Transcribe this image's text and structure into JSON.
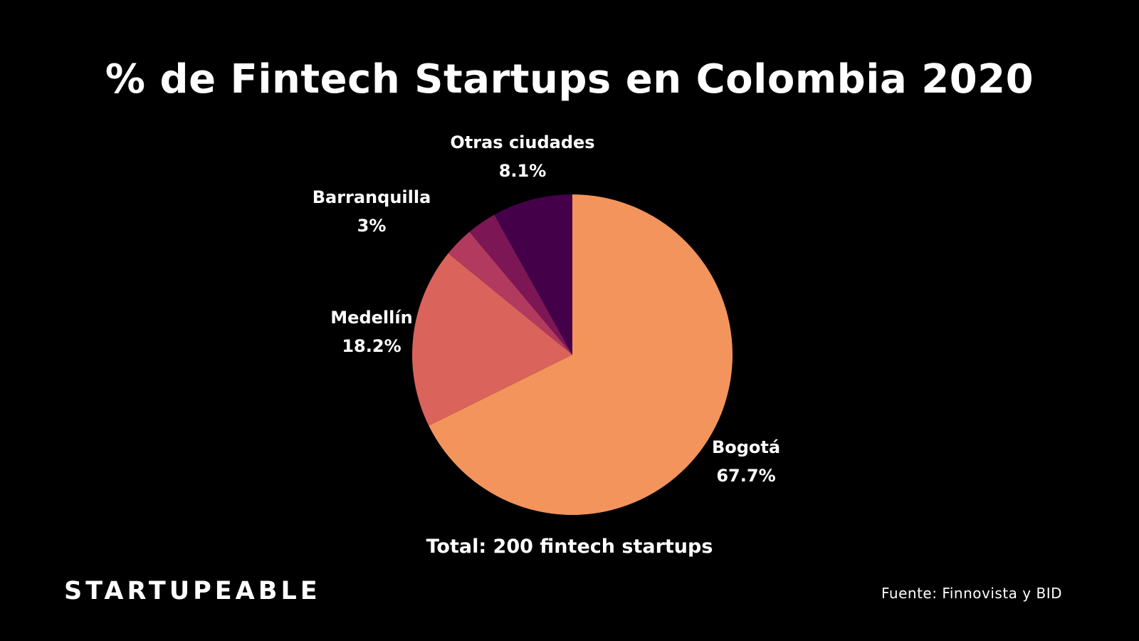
{
  "chart_data": {
    "type": "pie",
    "title": "% de Fintech Startups en Colombia 2020",
    "slices": [
      {
        "label": "Bogotá",
        "value": 67.7,
        "display": "67.7%",
        "color": "#F2945C"
      },
      {
        "label": "Medellín",
        "value": 18.2,
        "display": "18.2%",
        "color": "#DA635B"
      },
      {
        "label": "",
        "value": 3.0,
        "display": "",
        "color": "#B23A5E"
      },
      {
        "label": "Barranquilla",
        "value": 3.0,
        "display": "3%",
        "color": "#7C1655"
      },
      {
        "label": "Otras ciudades",
        "value": 8.1,
        "display": "8.1%",
        "color": "#45004A"
      }
    ],
    "start_angle": "top",
    "direction": "clockwise",
    "legend": "none"
  },
  "footer": {
    "total": "Total: 200 fintech startups",
    "brand": "STARTUPEABLE",
    "source": "Fuente: Finnovista y BID"
  },
  "colors": {
    "background": "#000000",
    "text": "#FFFFFF"
  }
}
